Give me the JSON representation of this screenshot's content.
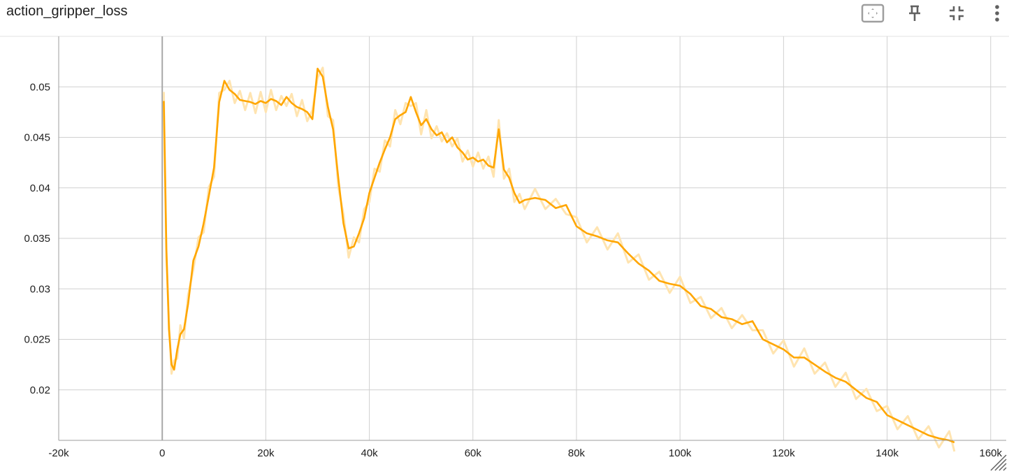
{
  "card": {
    "title": "action_gripper_loss"
  },
  "toolbar": {
    "fit_icon": "fit-domain-icon",
    "pin_icon": "pin-icon",
    "collapse_icon": "collapse-icon",
    "more_icon": "more-vert-icon"
  },
  "colors": {
    "line": "#ffa600",
    "raw": "#ffe4b0",
    "grid": "#d0d0d0",
    "axis": "#9e9e9e"
  },
  "chart_data": {
    "type": "line",
    "title": "action_gripper_loss",
    "xlabel": "",
    "ylabel": "",
    "xlim": [
      -20000,
      163000
    ],
    "ylim": [
      0.015,
      0.055
    ],
    "x_ticks": [
      {
        "value": -20000,
        "label": "-20k"
      },
      {
        "value": 0,
        "label": "0"
      },
      {
        "value": 20000,
        "label": "20k"
      },
      {
        "value": 40000,
        "label": "40k"
      },
      {
        "value": 60000,
        "label": "60k"
      },
      {
        "value": 80000,
        "label": "80k"
      },
      {
        "value": 100000,
        "label": "100k"
      },
      {
        "value": 120000,
        "label": "120k"
      },
      {
        "value": 140000,
        "label": "140k"
      },
      {
        "value": 160000,
        "label": "160k"
      }
    ],
    "y_ticks": [
      {
        "value": 0.02,
        "label": "0.02"
      },
      {
        "value": 0.025,
        "label": "0.025"
      },
      {
        "value": 0.03,
        "label": "0.03"
      },
      {
        "value": 0.035,
        "label": "0.035"
      },
      {
        "value": 0.04,
        "label": "0.04"
      },
      {
        "value": 0.045,
        "label": "0.045"
      },
      {
        "value": 0.05,
        "label": "0.05"
      }
    ],
    "grid": true,
    "series": [
      {
        "x": [
          300,
          800,
          1300,
          1800,
          2300,
          2900,
          3500,
          4200,
          5000,
          6000,
          7000,
          8000,
          9000,
          10000,
          11000,
          12000,
          13000,
          14000,
          15000,
          16000,
          17000,
          18000,
          19000,
          20000,
          21000,
          22000,
          23000,
          24000,
          25000,
          26000,
          27000,
          28000,
          29000,
          30000,
          31000,
          32000,
          33000,
          34000,
          35000,
          36000,
          37000,
          38000,
          39000,
          40000,
          41000,
          42000,
          43000,
          44000,
          45000,
          46000,
          47000,
          48000,
          49000,
          50000,
          51000,
          52000,
          53000,
          54000,
          55000,
          56000,
          57000,
          58000,
          59000,
          60000,
          61000,
          62000,
          63000,
          64000,
          65000,
          66000,
          67000,
          68000,
          69000,
          70000,
          72000,
          74000,
          76000,
          78000,
          80000,
          82000,
          84000,
          86000,
          88000,
          90000,
          92000,
          94000,
          96000,
          98000,
          100000,
          102000,
          104000,
          106000,
          108000,
          110000,
          112000,
          114000,
          116000,
          118000,
          120000,
          122000,
          124000,
          126000,
          128000,
          130000,
          132000,
          134000,
          136000,
          138000,
          140000,
          142000,
          144000,
          146000,
          148000,
          150000,
          152000,
          153000
        ],
        "values": [
          0.0486,
          0.034,
          0.026,
          0.0225,
          0.022,
          0.024,
          0.0255,
          0.026,
          0.0285,
          0.0328,
          0.0342,
          0.0365,
          0.0392,
          0.042,
          0.0485,
          0.0506,
          0.0497,
          0.0493,
          0.0487,
          0.0486,
          0.0485,
          0.0483,
          0.0486,
          0.0484,
          0.0488,
          0.0486,
          0.0482,
          0.049,
          0.0484,
          0.048,
          0.0478,
          0.0475,
          0.0468,
          0.0518,
          0.051,
          0.048,
          0.0458,
          0.041,
          0.0365,
          0.034,
          0.0342,
          0.0355,
          0.037,
          0.0395,
          0.041,
          0.0425,
          0.0438,
          0.045,
          0.0468,
          0.0472,
          0.0475,
          0.049,
          0.0475,
          0.0462,
          0.0468,
          0.0458,
          0.0452,
          0.0455,
          0.0445,
          0.045,
          0.044,
          0.0435,
          0.0428,
          0.043,
          0.0426,
          0.0428,
          0.0422,
          0.042,
          0.0458,
          0.0418,
          0.041,
          0.0395,
          0.0385,
          0.0388,
          0.039,
          0.0388,
          0.038,
          0.0383,
          0.0362,
          0.0355,
          0.0352,
          0.0348,
          0.0346,
          0.0335,
          0.0325,
          0.0318,
          0.0308,
          0.0305,
          0.0303,
          0.0295,
          0.0283,
          0.028,
          0.0272,
          0.027,
          0.0265,
          0.0268,
          0.025,
          0.0245,
          0.024,
          0.0232,
          0.0232,
          0.0225,
          0.0218,
          0.0212,
          0.0208,
          0.02,
          0.0192,
          0.0188,
          0.0175,
          0.017,
          0.0165,
          0.016,
          0.0155,
          0.0152,
          0.015,
          0.0148
        ]
      }
    ]
  }
}
